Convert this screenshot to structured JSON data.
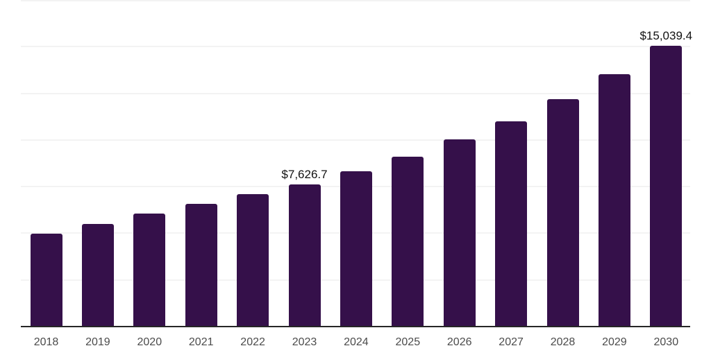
{
  "chart_data": {
    "type": "bar",
    "title": "",
    "xlabel": "",
    "ylabel": "",
    "categories": [
      "2018",
      "2019",
      "2020",
      "2021",
      "2022",
      "2023",
      "2024",
      "2025",
      "2026",
      "2027",
      "2028",
      "2029",
      "2030"
    ],
    "values": [
      4970,
      5510,
      6050,
      6590,
      7080,
      7626.7,
      8310,
      9100,
      10030,
      11000,
      12200,
      13540,
      15039.4
    ],
    "value_labels": [
      {
        "category": "2023",
        "text": "$7,626.7"
      },
      {
        "category": "2030",
        "text": "$15,039.4"
      }
    ],
    "ylim": [
      0,
      17500
    ],
    "gridline_interval": 2500,
    "grid": "horizontal",
    "y_tick_labels_shown": false,
    "legend_position": "none",
    "colors": {
      "bar": "#35104a",
      "axis_line": "#262626",
      "gridline": "#f3f3f3",
      "tick_text": "#4b4b4b",
      "value_label_text": "#111111",
      "background": "#ffffff"
    }
  }
}
